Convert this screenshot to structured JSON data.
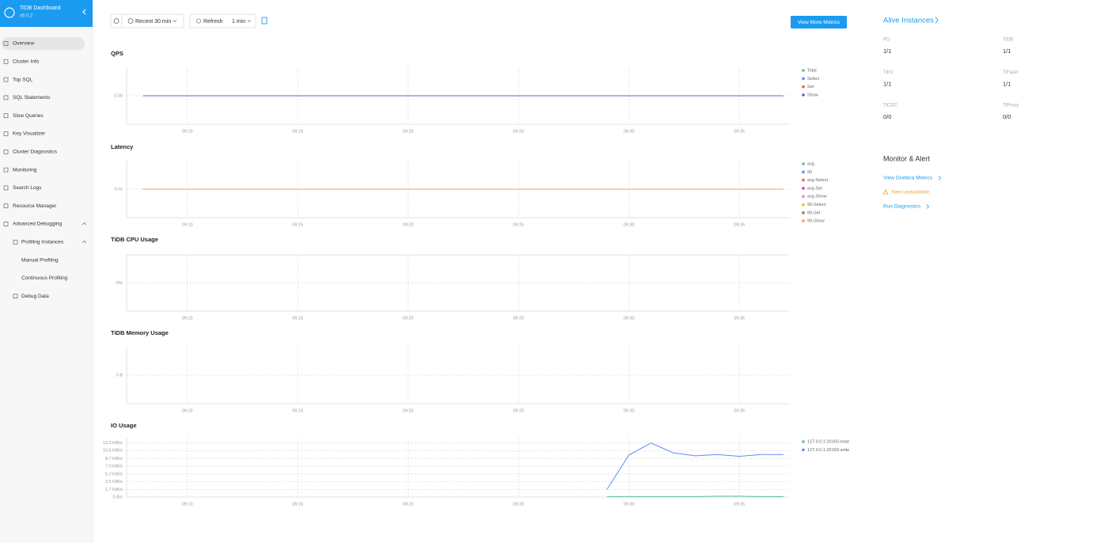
{
  "sidebar": {
    "title": "TiDB Dashboard",
    "version": "v5.0.2",
    "menu": [
      {
        "label": "Overview",
        "level": 0
      },
      {
        "label": "Cluster Info",
        "level": 0
      },
      {
        "label": "Top SQL",
        "level": 0
      },
      {
        "label": "SQL Statements",
        "level": 0
      },
      {
        "label": "Slow Queries",
        "level": 0
      },
      {
        "label": "Key Visualizer",
        "level": 0
      },
      {
        "label": "Cluster Diagnostics",
        "level": 0
      },
      {
        "label": "Monitoring",
        "level": 0
      },
      {
        "label": "Search Logs",
        "level": 0
      },
      {
        "label": "Resource Manager",
        "level": 0
      },
      {
        "label": "Advanced Debugging",
        "level": 0
      },
      {
        "label": "Profiling Instances",
        "level": 1
      },
      {
        "label": "Manual Profiling",
        "level": 2
      },
      {
        "label": "Continuous Profiling",
        "level": 2
      },
      {
        "label": "Debug Data",
        "level": 1
      }
    ]
  },
  "toolbar": {
    "range": "Recent 30 min",
    "refresh": "Refresh",
    "interval": "1 min",
    "more": "View More Metrics"
  },
  "chart_data": [
    {
      "type": "line",
      "title": "QPS",
      "xlim": [
        "09:07",
        "09:37"
      ],
      "xticks": [
        "09:10",
        "09:15",
        "09:20",
        "09:25",
        "09:30",
        "09:35"
      ],
      "ylim": [
        -1,
        1
      ],
      "yticks": [
        {
          "value": 0,
          "label": "0.00"
        }
      ],
      "grid": true,
      "x": [
        "09:08",
        "09:37"
      ],
      "series": [
        {
          "name": "Total",
          "color": "#52c49a",
          "values": [
            0,
            0
          ]
        },
        {
          "name": "Select",
          "color": "#5b8ff9",
          "values": [
            0,
            0
          ]
        },
        {
          "name": "Set",
          "color": "#e8684a",
          "values": [
            0,
            0
          ]
        },
        {
          "name": "Show",
          "color": "#6d5fc9",
          "values": [
            0,
            0
          ]
        }
      ]
    },
    {
      "type": "line",
      "title": "Latency",
      "xlim": [
        "09:07",
        "09:37"
      ],
      "xticks": [
        "09:10",
        "09:15",
        "09:20",
        "09:25",
        "09:30",
        "09:35"
      ],
      "ylim": [
        -1,
        1
      ],
      "yticks": [
        {
          "value": 0,
          "label": "0 ns"
        }
      ],
      "grid": true,
      "x": [
        "09:08",
        "09:37"
      ],
      "series": [
        {
          "name": "avg",
          "color": "#52c49a",
          "values": [
            0,
            0
          ]
        },
        {
          "name": "99",
          "color": "#5b8ff9",
          "values": [
            0,
            0
          ]
        },
        {
          "name": "avg-Select",
          "color": "#e8684a",
          "values": [
            0,
            0
          ]
        },
        {
          "name": "avg-Set",
          "color": "#d0469f",
          "values": [
            0,
            0
          ]
        },
        {
          "name": "avg-Show",
          "color": "#c896e6",
          "values": [
            0,
            0
          ]
        },
        {
          "name": "99-Select",
          "color": "#f6bd16",
          "values": [
            0,
            0
          ]
        },
        {
          "name": "99-Set",
          "color": "#a57c39",
          "values": [
            0,
            0
          ]
        },
        {
          "name": "99-Show",
          "color": "#ff9d4d",
          "values": [
            0,
            0
          ]
        }
      ]
    },
    {
      "type": "line",
      "title": "TiDB CPU Usage",
      "xlim": [
        "09:07",
        "09:37"
      ],
      "xticks": [
        "09:10",
        "09:15",
        "09:20",
        "09:25",
        "09:30",
        "09:35"
      ],
      "ylim": [
        -1,
        1
      ],
      "yticks": [
        {
          "value": 0,
          "label": "0%"
        }
      ],
      "grid": true,
      "x": [],
      "series": []
    },
    {
      "type": "line",
      "title": "TiDB Memory Usage",
      "xlim": [
        "09:07",
        "09:37"
      ],
      "xticks": [
        "09:10",
        "09:15",
        "09:20",
        "09:25",
        "09:30",
        "09:35"
      ],
      "ylim": [
        -1,
        1
      ],
      "yticks": [
        {
          "value": 0,
          "label": "0 B"
        }
      ],
      "grid": true,
      "x": [],
      "series": []
    },
    {
      "type": "line",
      "title": "IO Usage",
      "xlim": [
        "09:07",
        "09:37"
      ],
      "xticks": [
        "09:10",
        "09:15",
        "09:20",
        "09:25",
        "09:30",
        "09:35"
      ],
      "ylim": [
        0,
        13.4
      ],
      "yticks": [
        {
          "value": 0,
          "label": "0 B/s"
        },
        {
          "value": 1.7,
          "label": "1.7 KiB/s"
        },
        {
          "value": 3.5,
          "label": "3.5 KiB/s"
        },
        {
          "value": 5.2,
          "label": "5.2 KiB/s"
        },
        {
          "value": 7,
          "label": "7.0 KiB/s"
        },
        {
          "value": 8.7,
          "label": "8.7 KiB/s"
        },
        {
          "value": 10.5,
          "label": "10.5 KiB/s"
        },
        {
          "value": 12.2,
          "label": "12.2 KiB/s"
        }
      ],
      "grid": true,
      "x": [
        "09:29",
        "09:30",
        "09:31",
        "09:32",
        "09:33",
        "09:34",
        "09:35",
        "09:36",
        "09:37"
      ],
      "series": [
        {
          "name": "127.0.0.1:20160-read",
          "color": "#52c49a",
          "values": [
            0.1,
            0.1,
            0.1,
            0.1,
            0.1,
            0.2,
            0.2,
            0.1,
            0.1
          ]
        },
        {
          "name": "127.0.0.1:20160-write",
          "color": "#5b8ff9",
          "values": [
            1.7,
            9.5,
            12.2,
            10,
            9.3,
            9.6,
            9.2,
            9.6,
            9.6
          ]
        }
      ]
    }
  ],
  "alive": {
    "title": "Alive Instances",
    "items": [
      {
        "name": "PD",
        "value": "1/1"
      },
      {
        "name": "TiDB",
        "value": "1/1"
      },
      {
        "name": "TiKV",
        "value": "1/1"
      },
      {
        "name": "TiFlash",
        "value": "1/1"
      },
      {
        "name": "TiCDC",
        "value": "0/0"
      },
      {
        "name": "TiProxy",
        "value": "0/0"
      }
    ]
  },
  "monitor": {
    "title": "Monitor & Alert",
    "grafana": "View Grafana Metrics",
    "alert": "Alert unavailable",
    "diagnostics": "Run Diagnostics"
  }
}
